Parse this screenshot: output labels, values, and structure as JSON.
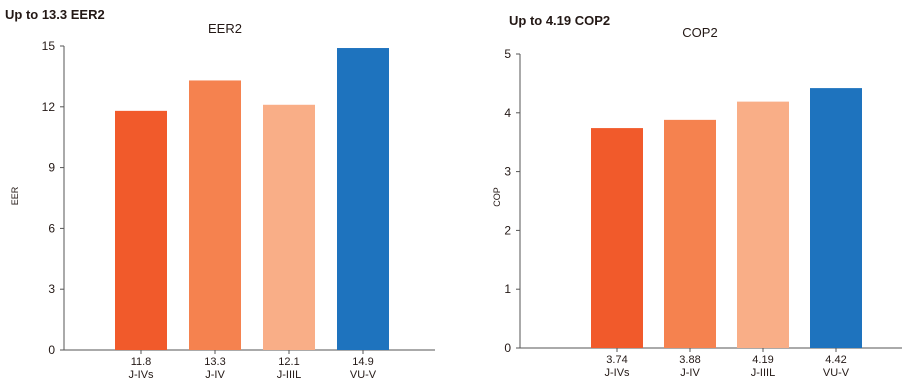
{
  "charts": [
    {
      "headline": "Up to 13.3 EER2",
      "chart_data": {
        "type": "bar",
        "title": "EER2",
        "ylabel": "EER",
        "ylim": [
          0,
          15
        ],
        "yticks": [
          0,
          3,
          6,
          9,
          12,
          15
        ],
        "categories": [
          "J-IVs",
          "J-IV",
          "J-IIIL",
          "VU-V"
        ],
        "value_labels": [
          "11.8",
          "13.3",
          "12.1",
          "14.9"
        ],
        "values": [
          11.8,
          13.3,
          12.1,
          14.9
        ],
        "colors": [
          "#F15A2B",
          "#F5824F",
          "#F9AE87",
          "#1E73BE"
        ],
        "grid": false
      }
    },
    {
      "headline": "Up to 4.19 COP2",
      "chart_data": {
        "type": "bar",
        "title": "COP2",
        "ylabel": "COP",
        "ylim": [
          0,
          5
        ],
        "yticks": [
          0,
          1,
          2,
          3,
          4,
          5
        ],
        "categories": [
          "J-IVs",
          "J-IV",
          "J-IIIL",
          "VU-V"
        ],
        "value_labels": [
          "3.74",
          "3.88",
          "4.19",
          "4.42"
        ],
        "values": [
          3.74,
          3.88,
          4.19,
          4.42
        ],
        "colors": [
          "#F15A2B",
          "#F5824F",
          "#F9AE87",
          "#1E73BE"
        ],
        "grid": false
      }
    }
  ]
}
